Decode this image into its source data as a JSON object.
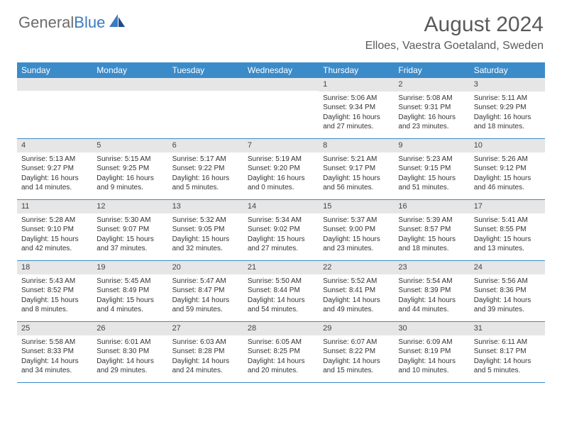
{
  "logo": {
    "text1": "General",
    "text2": "Blue"
  },
  "title": "August 2024",
  "location": "Elloes, Vaestra Goetaland, Sweden",
  "colors": {
    "header_bg": "#3b8bc9",
    "header_text": "#ffffff",
    "daynum_bg": "#e6e6e6",
    "border": "#3b8bc9",
    "logo_gray": "#6b6b6b",
    "logo_blue": "#3b7bbf",
    "title_color": "#5a5a5a"
  },
  "day_labels": [
    "Sunday",
    "Monday",
    "Tuesday",
    "Wednesday",
    "Thursday",
    "Friday",
    "Saturday"
  ],
  "weeks": [
    [
      null,
      null,
      null,
      null,
      {
        "n": "1",
        "sunrise": "5:06 AM",
        "sunset": "9:34 PM",
        "daylight": "16 hours and 27 minutes."
      },
      {
        "n": "2",
        "sunrise": "5:08 AM",
        "sunset": "9:31 PM",
        "daylight": "16 hours and 23 minutes."
      },
      {
        "n": "3",
        "sunrise": "5:11 AM",
        "sunset": "9:29 PM",
        "daylight": "16 hours and 18 minutes."
      }
    ],
    [
      {
        "n": "4",
        "sunrise": "5:13 AM",
        "sunset": "9:27 PM",
        "daylight": "16 hours and 14 minutes."
      },
      {
        "n": "5",
        "sunrise": "5:15 AM",
        "sunset": "9:25 PM",
        "daylight": "16 hours and 9 minutes."
      },
      {
        "n": "6",
        "sunrise": "5:17 AM",
        "sunset": "9:22 PM",
        "daylight": "16 hours and 5 minutes."
      },
      {
        "n": "7",
        "sunrise": "5:19 AM",
        "sunset": "9:20 PM",
        "daylight": "16 hours and 0 minutes."
      },
      {
        "n": "8",
        "sunrise": "5:21 AM",
        "sunset": "9:17 PM",
        "daylight": "15 hours and 56 minutes."
      },
      {
        "n": "9",
        "sunrise": "5:23 AM",
        "sunset": "9:15 PM",
        "daylight": "15 hours and 51 minutes."
      },
      {
        "n": "10",
        "sunrise": "5:26 AM",
        "sunset": "9:12 PM",
        "daylight": "15 hours and 46 minutes."
      }
    ],
    [
      {
        "n": "11",
        "sunrise": "5:28 AM",
        "sunset": "9:10 PM",
        "daylight": "15 hours and 42 minutes."
      },
      {
        "n": "12",
        "sunrise": "5:30 AM",
        "sunset": "9:07 PM",
        "daylight": "15 hours and 37 minutes."
      },
      {
        "n": "13",
        "sunrise": "5:32 AM",
        "sunset": "9:05 PM",
        "daylight": "15 hours and 32 minutes."
      },
      {
        "n": "14",
        "sunrise": "5:34 AM",
        "sunset": "9:02 PM",
        "daylight": "15 hours and 27 minutes."
      },
      {
        "n": "15",
        "sunrise": "5:37 AM",
        "sunset": "9:00 PM",
        "daylight": "15 hours and 23 minutes."
      },
      {
        "n": "16",
        "sunrise": "5:39 AM",
        "sunset": "8:57 PM",
        "daylight": "15 hours and 18 minutes."
      },
      {
        "n": "17",
        "sunrise": "5:41 AM",
        "sunset": "8:55 PM",
        "daylight": "15 hours and 13 minutes."
      }
    ],
    [
      {
        "n": "18",
        "sunrise": "5:43 AM",
        "sunset": "8:52 PM",
        "daylight": "15 hours and 8 minutes."
      },
      {
        "n": "19",
        "sunrise": "5:45 AM",
        "sunset": "8:49 PM",
        "daylight": "15 hours and 4 minutes."
      },
      {
        "n": "20",
        "sunrise": "5:47 AM",
        "sunset": "8:47 PM",
        "daylight": "14 hours and 59 minutes."
      },
      {
        "n": "21",
        "sunrise": "5:50 AM",
        "sunset": "8:44 PM",
        "daylight": "14 hours and 54 minutes."
      },
      {
        "n": "22",
        "sunrise": "5:52 AM",
        "sunset": "8:41 PM",
        "daylight": "14 hours and 49 minutes."
      },
      {
        "n": "23",
        "sunrise": "5:54 AM",
        "sunset": "8:39 PM",
        "daylight": "14 hours and 44 minutes."
      },
      {
        "n": "24",
        "sunrise": "5:56 AM",
        "sunset": "8:36 PM",
        "daylight": "14 hours and 39 minutes."
      }
    ],
    [
      {
        "n": "25",
        "sunrise": "5:58 AM",
        "sunset": "8:33 PM",
        "daylight": "14 hours and 34 minutes."
      },
      {
        "n": "26",
        "sunrise": "6:01 AM",
        "sunset": "8:30 PM",
        "daylight": "14 hours and 29 minutes."
      },
      {
        "n": "27",
        "sunrise": "6:03 AM",
        "sunset": "8:28 PM",
        "daylight": "14 hours and 24 minutes."
      },
      {
        "n": "28",
        "sunrise": "6:05 AM",
        "sunset": "8:25 PM",
        "daylight": "14 hours and 20 minutes."
      },
      {
        "n": "29",
        "sunrise": "6:07 AM",
        "sunset": "8:22 PM",
        "daylight": "14 hours and 15 minutes."
      },
      {
        "n": "30",
        "sunrise": "6:09 AM",
        "sunset": "8:19 PM",
        "daylight": "14 hours and 10 minutes."
      },
      {
        "n": "31",
        "sunrise": "6:11 AM",
        "sunset": "8:17 PM",
        "daylight": "14 hours and 5 minutes."
      }
    ]
  ],
  "labels": {
    "sunrise": "Sunrise: ",
    "sunset": "Sunset: ",
    "daylight": "Daylight: "
  }
}
